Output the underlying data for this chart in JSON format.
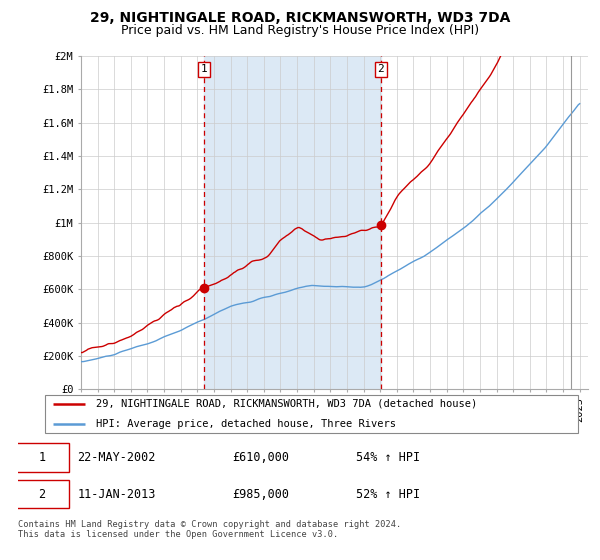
{
  "title": "29, NIGHTINGALE ROAD, RICKMANSWORTH, WD3 7DA",
  "subtitle": "Price paid vs. HM Land Registry's House Price Index (HPI)",
  "ylim": [
    0,
    2000000
  ],
  "yticks": [
    0,
    200000,
    400000,
    600000,
    800000,
    1000000,
    1200000,
    1400000,
    1600000,
    1800000,
    2000000
  ],
  "ytick_labels": [
    "£0",
    "£200K",
    "£400K",
    "£600K",
    "£800K",
    "£1M",
    "£1.2M",
    "£1.4M",
    "£1.6M",
    "£1.8M",
    "£2M"
  ],
  "xlim_start": 1995.0,
  "xlim_end": 2025.5,
  "sale1_date": 2002.38,
  "sale1_price": 610000,
  "sale1_label": "1",
  "sale1_text": "22-MAY-2002",
  "sale1_amount": "£610,000",
  "sale1_hpi": "54% ↑ HPI",
  "sale2_date": 2013.03,
  "sale2_price": 985000,
  "sale2_label": "2",
  "sale2_text": "11-JAN-2013",
  "sale2_amount": "£985,000",
  "sale2_hpi": "52% ↑ HPI",
  "hpi_line_color": "#5b9bd5",
  "price_line_color": "#cc0000",
  "marker_color": "#cc0000",
  "vline_color": "#cc0000",
  "shade_color": "#dce9f5",
  "legend_label_price": "29, NIGHTINGALE ROAD, RICKMANSWORTH, WD3 7DA (detached house)",
  "legend_label_hpi": "HPI: Average price, detached house, Three Rivers",
  "footer": "Contains HM Land Registry data © Crown copyright and database right 2024.\nThis data is licensed under the Open Government Licence v3.0.",
  "background_color": "#ffffff",
  "grid_color": "#cccccc",
  "title_fontsize": 10,
  "subtitle_fontsize": 9,
  "tick_fontsize": 7.5
}
